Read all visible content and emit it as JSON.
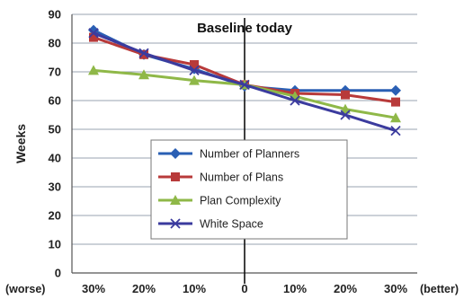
{
  "chart_data": {
    "type": "line",
    "categories": [
      "30%",
      "20%",
      "10%",
      "0",
      "10%",
      "20%",
      "30%"
    ],
    "x_end_labels": {
      "left": "(worse)",
      "right": "(better)"
    },
    "ylabel": "Weeks",
    "ylim": [
      0,
      90
    ],
    "yticks": [
      0,
      10,
      20,
      30,
      40,
      50,
      60,
      70,
      80,
      90
    ],
    "grid": true,
    "baseline": {
      "label": "Baseline today",
      "category_index": 3
    },
    "legend_position": "center",
    "series": [
      {
        "name": "Number of Planners",
        "color": "#2a5fb4",
        "marker": "diamond",
        "values": [
          84.5,
          76,
          71,
          65,
          63.5,
          63.5,
          63.5
        ]
      },
      {
        "name": "Number of Plans",
        "color": "#b83a3a",
        "marker": "square",
        "values": [
          82,
          76,
          72.5,
          65.5,
          62.5,
          62,
          59.5
        ]
      },
      {
        "name": "Plan Complexity",
        "color": "#8fb848",
        "marker": "triangle",
        "values": [
          70.5,
          69,
          67,
          65.5,
          61.5,
          57,
          54
        ]
      },
      {
        "name": "White Space",
        "color": "#3b3b9e",
        "marker": "x",
        "values": [
          83.5,
          76.5,
          70.5,
          65.5,
          60,
          55,
          49.5
        ]
      }
    ]
  }
}
